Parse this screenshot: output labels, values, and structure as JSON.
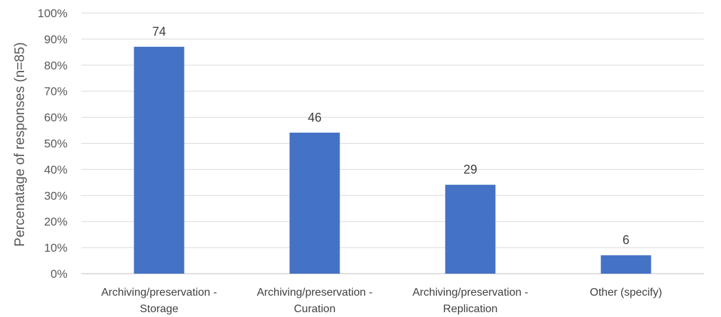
{
  "chart_data": {
    "type": "bar",
    "categories": [
      [
        "Archiving/preservation -",
        "Storage"
      ],
      [
        "Archiving/preservation -",
        "Curation"
      ],
      [
        "Archiving/preservation -",
        "Replication"
      ],
      [
        "Other (specify)"
      ]
    ],
    "values": [
      87.06,
      54.12,
      34.12,
      7.06
    ],
    "data_labels": [
      "74",
      "46",
      "29",
      "6"
    ],
    "ylabel": "Percenatage of responses (n=85)",
    "ylim": [
      0,
      100
    ],
    "yticks": [
      "0%",
      "10%",
      "20%",
      "30%",
      "40%",
      "50%",
      "60%",
      "70%",
      "80%",
      "90%",
      "100%"
    ],
    "bar_color": "#4472c4",
    "grid": true
  }
}
